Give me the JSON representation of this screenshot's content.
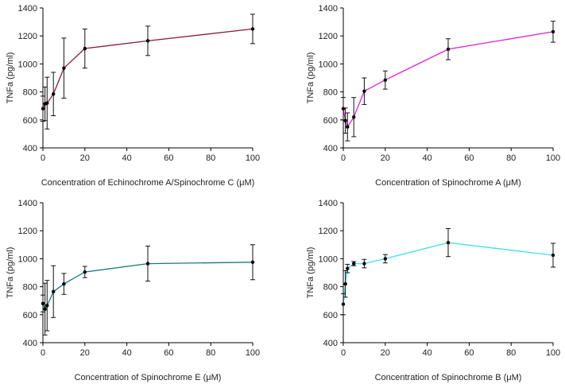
{
  "chart_data": [
    {
      "type": "line",
      "xlabel": "Concentration of Echinochrome A/Spinochrome C (μM)",
      "ylabel": "TNFa (pg/ml)",
      "xlim": [
        0,
        100
      ],
      "ylim": [
        400,
        1400
      ],
      "xticks": [
        0,
        20,
        40,
        60,
        80,
        100
      ],
      "yticks": [
        400,
        600,
        800,
        1000,
        1200,
        1400
      ],
      "color": "#8b1a3f",
      "series": [
        {
          "x": [
            0,
            1,
            2,
            5,
            10,
            20,
            50,
            100
          ],
          "y": [
            680,
            715,
            720,
            785,
            970,
            1110,
            1165,
            1250
          ],
          "error": [
            90,
            120,
            185,
            155,
            215,
            140,
            105,
            105
          ]
        }
      ]
    },
    {
      "type": "line",
      "xlabel": "Concentration of Spinochrome A (μM)",
      "ylabel": "TNFa (pg/ml)",
      "xlim": [
        0,
        100
      ],
      "ylim": [
        400,
        1400
      ],
      "xticks": [
        0,
        20,
        40,
        60,
        80,
        100
      ],
      "yticks": [
        400,
        600,
        800,
        1000,
        1200,
        1400
      ],
      "color": "#e020d0",
      "series": [
        {
          "x": [
            0,
            1,
            2,
            5,
            10,
            20,
            50,
            100
          ],
          "y": [
            680,
            595,
            550,
            620,
            805,
            885,
            1105,
            1230
          ],
          "error": [
            80,
            90,
            100,
            140,
            95,
            65,
            75,
            75
          ]
        }
      ]
    },
    {
      "type": "line",
      "xlabel": "Concentration of Spinochrome E (μM)",
      "ylabel": "TNFa (pg/ml)",
      "xlim": [
        0,
        100
      ],
      "ylim": [
        400,
        1400
      ],
      "xticks": [
        0,
        20,
        40,
        60,
        80,
        100
      ],
      "yticks": [
        400,
        600,
        800,
        1000,
        1200,
        1400
      ],
      "color": "#1a7a7a",
      "series": [
        {
          "x": [
            0,
            1,
            2,
            5,
            10,
            20,
            50,
            100
          ],
          "y": [
            680,
            640,
            665,
            765,
            820,
            905,
            965,
            975
          ],
          "error": [
            60,
            185,
            180,
            185,
            75,
            40,
            125,
            125
          ]
        }
      ]
    },
    {
      "type": "line",
      "xlabel": "Concentration of Spinochrome B (μM)",
      "ylabel": "TNFa (pg/ml)",
      "xlim": [
        0,
        100
      ],
      "ylim": [
        400,
        1400
      ],
      "xticks": [
        0,
        20,
        40,
        60,
        80,
        100
      ],
      "yticks": [
        400,
        600,
        800,
        1000,
        1200,
        1400
      ],
      "color": "#3fe0e8",
      "series": [
        {
          "x": [
            0,
            1,
            2,
            5,
            10,
            20,
            50,
            100
          ],
          "y": [
            675,
            820,
            930,
            965,
            965,
            1000,
            1115,
            1025
          ],
          "error": [
            75,
            95,
            30,
            15,
            30,
            30,
            100,
            85
          ]
        }
      ]
    }
  ]
}
